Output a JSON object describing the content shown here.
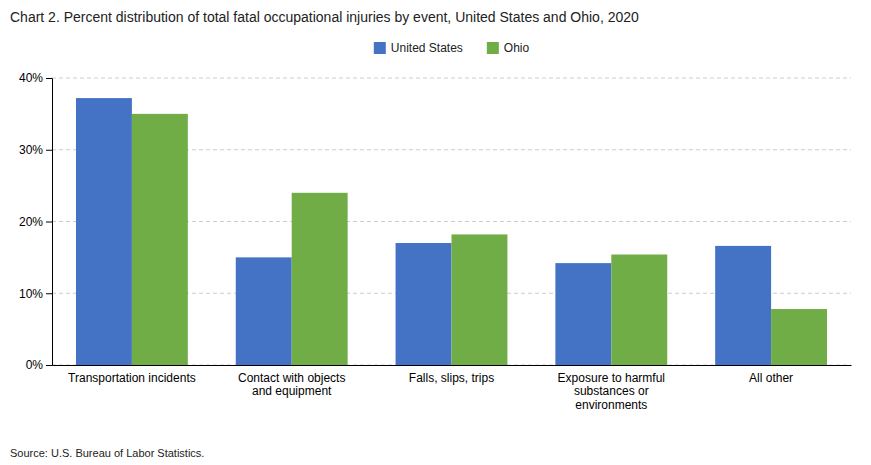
{
  "chart_data": {
    "type": "bar",
    "title": "Chart 2. Percent distribution of total fatal occupational injuries by event, United States and Ohio, 2020",
    "categories": [
      "Transportation incidents",
      "Contact with objects\nand equipment",
      "Falls, slips, trips",
      "Exposure to harmful\nsubstances or\nenvironments",
      "All other"
    ],
    "series": [
      {
        "name": "United States",
        "color": "#4472C4",
        "values": [
          37.2,
          15.0,
          17.0,
          14.2,
          16.6
        ]
      },
      {
        "name": "Ohio",
        "color": "#70AD47",
        "values": [
          35.0,
          24.0,
          18.2,
          15.4,
          7.8
        ]
      }
    ],
    "ylim": [
      0,
      40
    ],
    "yticks": [
      {
        "value": 0,
        "label": "0%"
      },
      {
        "value": 10,
        "label": "10%"
      },
      {
        "value": 20,
        "label": "20%"
      },
      {
        "value": 30,
        "label": "30%"
      },
      {
        "value": 40,
        "label": "40%"
      }
    ],
    "grid": true,
    "legend": "top",
    "annotations": [
      "Source: U.S. Bureau of Labor Statistics."
    ]
  }
}
